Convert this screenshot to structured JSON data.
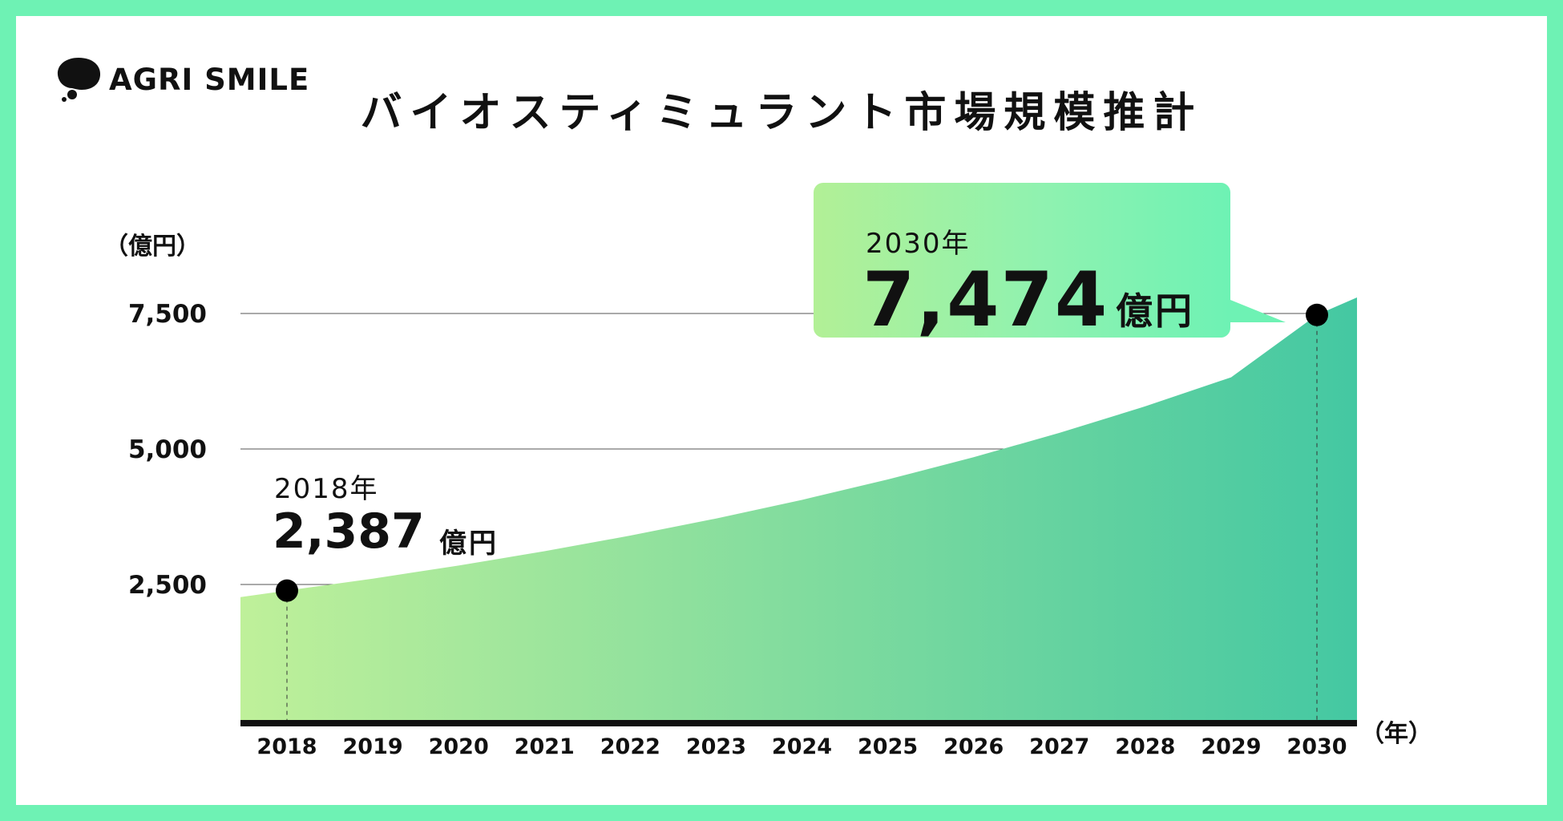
{
  "brand": {
    "name": "AGRI SMILE"
  },
  "chart_data": {
    "type": "area",
    "title": "バイオスティミュラント市場規模推計",
    "ylabel": "（億円）",
    "xlabel": "（年）",
    "ylim": [
      0,
      7500
    ],
    "y_ticks": [
      "2,500",
      "5,000",
      "7,500"
    ],
    "y_tick_values": [
      2500,
      5000,
      7500
    ],
    "x": [
      "2018",
      "2019",
      "2020",
      "2021",
      "2022",
      "2023",
      "2024",
      "2025",
      "2026",
      "2027",
      "2028",
      "2029",
      "2030"
    ],
    "values": [
      2387,
      2608,
      2850,
      3114,
      3402,
      3717,
      4061,
      4437,
      4848,
      5297,
      5787,
      6323,
      7474
    ],
    "grid": true,
    "colors": {
      "start": "#bff09a",
      "end": "#44c8a2",
      "background": "#6ef2b4"
    },
    "annotations": [
      {
        "year_label": "2018年",
        "value_label": "2,387",
        "unit": "億円",
        "x": "2018",
        "y": 2387
      },
      {
        "year_label": "2030年",
        "value_label": "7,474",
        "unit": "億円",
        "x": "2030",
        "y": 7474
      }
    ]
  }
}
